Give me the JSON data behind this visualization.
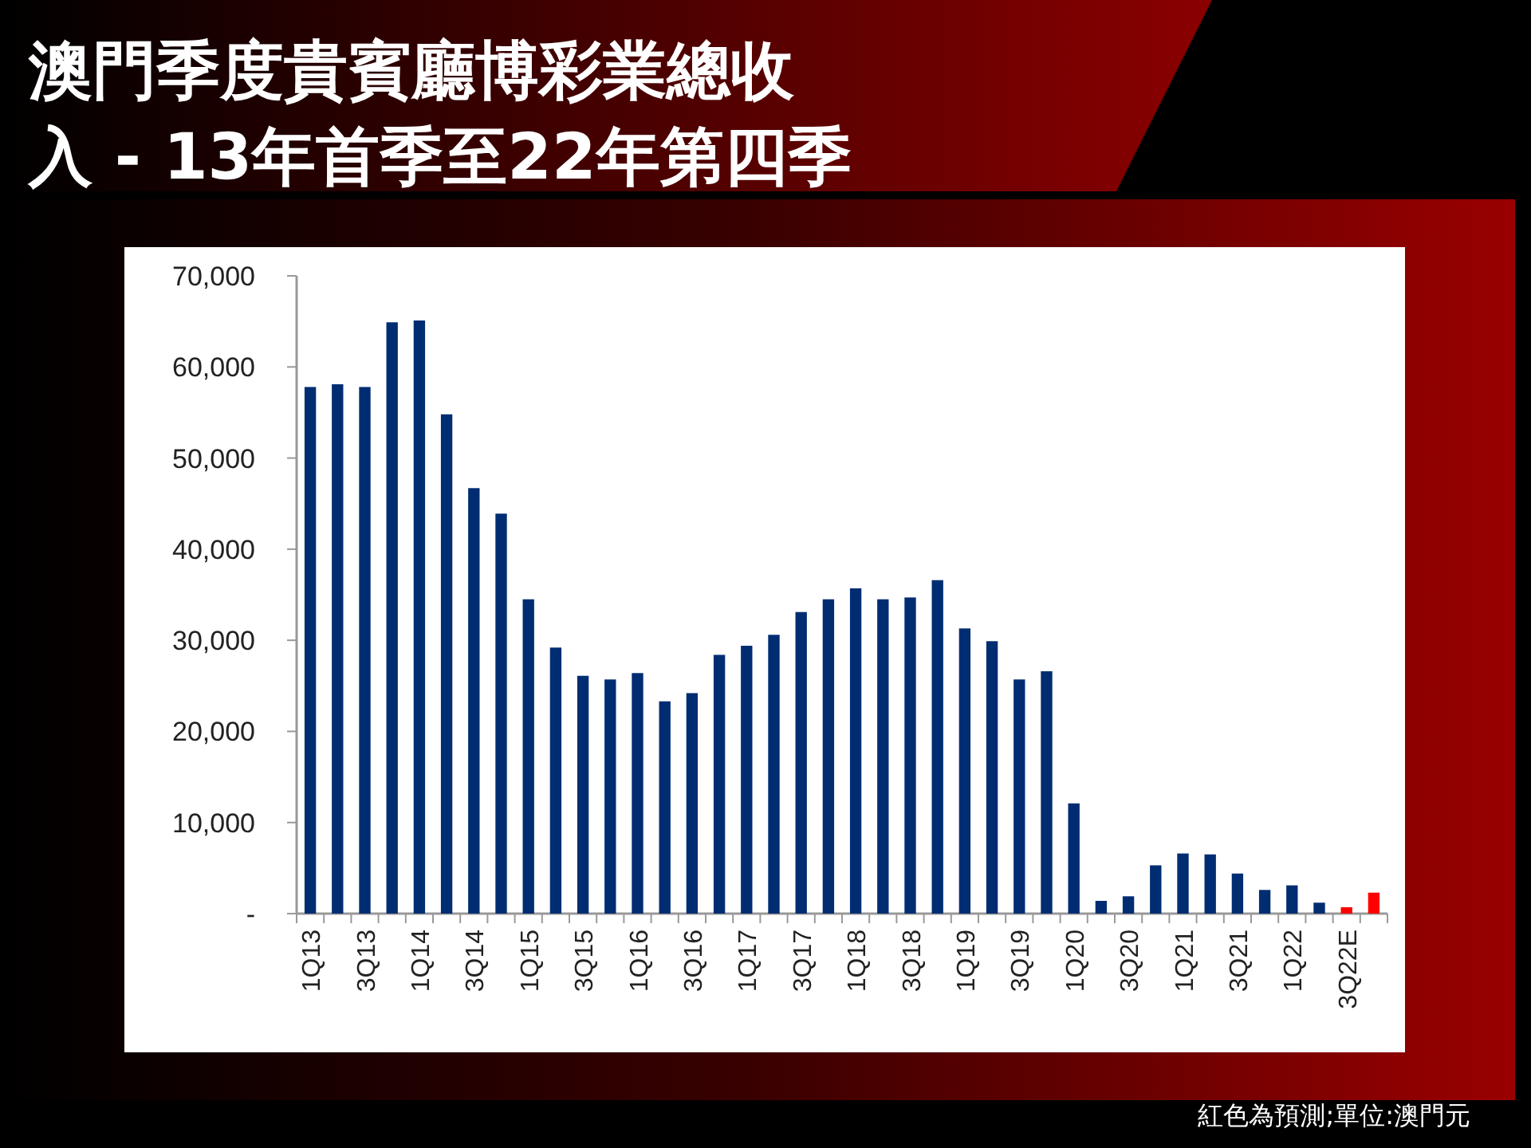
{
  "chart_data": {
    "type": "bar",
    "title": "澳門季度貴賓廳博彩業總收入 - 13年首季至22年第四季",
    "categories": [
      "1Q13",
      null,
      "3Q13",
      null,
      "1Q14",
      null,
      "3Q14",
      null,
      "1Q15",
      null,
      "3Q15",
      null,
      "1Q16",
      null,
      "3Q16",
      null,
      "1Q17",
      null,
      "3Q17",
      null,
      "1Q18",
      null,
      "3Q18",
      null,
      "1Q19",
      null,
      "3Q19",
      null,
      "1Q20",
      null,
      "3Q20",
      null,
      "1Q21",
      null,
      "3Q21",
      null,
      "1Q22",
      null,
      "3Q22E",
      null
    ],
    "values": [
      57800,
      58100,
      57800,
      64900,
      65100,
      54800,
      46700,
      43900,
      34500,
      29200,
      26100,
      25700,
      26400,
      23300,
      24200,
      28400,
      29400,
      30600,
      33100,
      34500,
      35700,
      34500,
      34700,
      36600,
      31300,
      29900,
      25700,
      26600,
      12100,
      1400,
      1900,
      5300,
      6600,
      6500,
      4400,
      2600,
      3100,
      1200,
      700,
      2300
    ],
    "colors": [
      "#002d72",
      "#002d72",
      "#002d72",
      "#002d72",
      "#002d72",
      "#002d72",
      "#002d72",
      "#002d72",
      "#002d72",
      "#002d72",
      "#002d72",
      "#002d72",
      "#002d72",
      "#002d72",
      "#002d72",
      "#002d72",
      "#002d72",
      "#002d72",
      "#002d72",
      "#002d72",
      "#002d72",
      "#002d72",
      "#002d72",
      "#002d72",
      "#002d72",
      "#002d72",
      "#002d72",
      "#002d72",
      "#002d72",
      "#002d72",
      "#002d72",
      "#002d72",
      "#002d72",
      "#002d72",
      "#002d72",
      "#002d72",
      "#002d72",
      "#002d72",
      "#ff0000",
      "#ff0000"
    ],
    "ylim": [
      0,
      70000
    ],
    "yticks": [
      {
        "value": 0,
        "label": "-"
      },
      {
        "value": 10000,
        "label": "10,000"
      },
      {
        "value": 20000,
        "label": "20,000"
      },
      {
        "value": 30000,
        "label": "30,000"
      },
      {
        "value": 40000,
        "label": "40,000"
      },
      {
        "value": 50000,
        "label": "50,000"
      },
      {
        "value": 60000,
        "label": "60,000"
      },
      {
        "value": 70000,
        "label": "70,000"
      }
    ],
    "grid": false,
    "annotations": [
      "紅色為預測;單位:澳門元"
    ]
  }
}
